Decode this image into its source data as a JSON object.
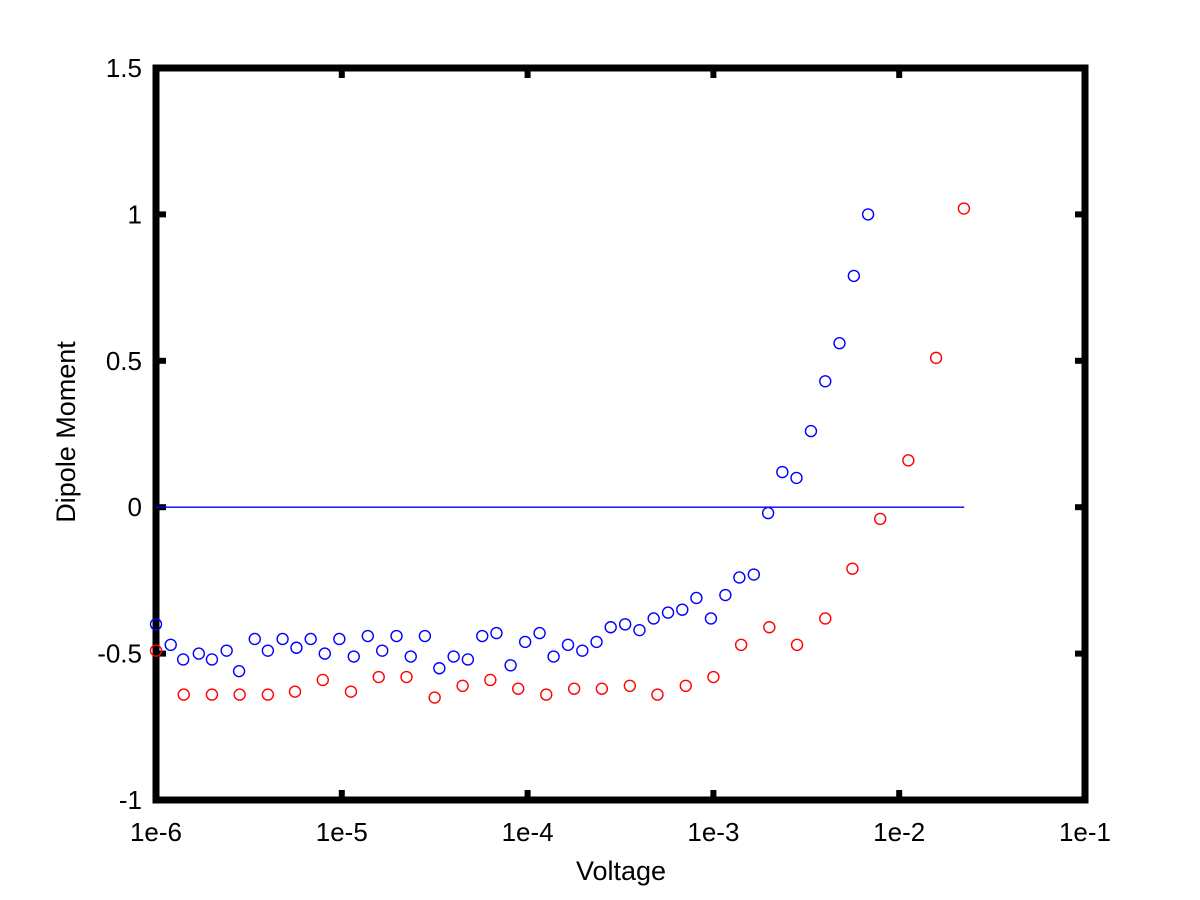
{
  "chart_data": {
    "type": "scatter",
    "title": "",
    "xlabel": "Voltage",
    "ylabel": "Dipole Moment",
    "x_scale": "log",
    "xlim": [
      1e-06,
      0.1
    ],
    "ylim": [
      -1,
      1.5
    ],
    "x_ticks": [
      {
        "value": 1e-06,
        "label": "1e-6"
      },
      {
        "value": 1e-05,
        "label": "1e-5"
      },
      {
        "value": 0.0001,
        "label": "1e-4"
      },
      {
        "value": 0.001,
        "label": "1e-3"
      },
      {
        "value": 0.01,
        "label": "1e-2"
      },
      {
        "value": 0.1,
        "label": "1e-1"
      }
    ],
    "y_ticks": [
      {
        "value": 1.5,
        "label": "1.5"
      },
      {
        "value": 1,
        "label": "1"
      },
      {
        "value": 0.5,
        "label": "0.5"
      },
      {
        "value": 0,
        "label": "0"
      },
      {
        "value": -0.5,
        "label": "-0.5"
      },
      {
        "value": -1,
        "label": "-1"
      }
    ],
    "grid": false,
    "reference_line": {
      "y": 0,
      "x_from": 1e-06,
      "x_to": 0.0224,
      "color": "#0000ff"
    },
    "series": [
      {
        "marker": "circle-open",
        "color": "#0000ff",
        "points": [
          [
            1e-06,
            -0.4
          ],
          [
            1.2e-06,
            -0.47
          ],
          [
            1.4e-06,
            -0.52
          ],
          [
            1.7e-06,
            -0.5
          ],
          [
            2e-06,
            -0.52
          ],
          [
            2.4e-06,
            -0.49
          ],
          [
            2.8e-06,
            -0.56
          ],
          [
            3.4e-06,
            -0.45
          ],
          [
            4e-06,
            -0.49
          ],
          [
            4.8e-06,
            -0.45
          ],
          [
            5.7e-06,
            -0.48
          ],
          [
            6.8e-06,
            -0.45
          ],
          [
            8.1e-06,
            -0.5
          ],
          [
            9.7e-06,
            -0.45
          ],
          [
            1.16e-05,
            -0.51
          ],
          [
            1.38e-05,
            -0.44
          ],
          [
            1.65e-05,
            -0.49
          ],
          [
            1.97e-05,
            -0.44
          ],
          [
            2.35e-05,
            -0.51
          ],
          [
            2.8e-05,
            -0.44
          ],
          [
            3.35e-05,
            -0.55
          ],
          [
            4e-05,
            -0.51
          ],
          [
            4.77e-05,
            -0.52
          ],
          [
            5.7e-05,
            -0.44
          ],
          [
            6.8e-05,
            -0.43
          ],
          [
            8.1e-05,
            -0.54
          ],
          [
            9.7e-05,
            -0.46
          ],
          [
            0.000116,
            -0.43
          ],
          [
            0.000138,
            -0.51
          ],
          [
            0.000165,
            -0.47
          ],
          [
            0.000197,
            -0.49
          ],
          [
            0.000235,
            -0.46
          ],
          [
            0.00028,
            -0.41
          ],
          [
            0.000335,
            -0.4
          ],
          [
            0.0004,
            -0.42
          ],
          [
            0.000477,
            -0.38
          ],
          [
            0.00057,
            -0.36
          ],
          [
            0.00068,
            -0.35
          ],
          [
            0.00081,
            -0.31
          ],
          [
            0.00097,
            -0.38
          ],
          [
            0.00116,
            -0.3
          ],
          [
            0.00138,
            -0.24
          ],
          [
            0.00165,
            -0.23
          ],
          [
            0.00197,
            -0.02
          ],
          [
            0.00235,
            0.12
          ],
          [
            0.0028,
            0.1
          ],
          [
            0.00335,
            0.26
          ],
          [
            0.004,
            0.43
          ],
          [
            0.00477,
            0.56
          ],
          [
            0.0057,
            0.79
          ],
          [
            0.0068,
            1.0
          ]
        ]
      },
      {
        "marker": "circle-open",
        "color": "#ff0000",
        "points": [
          [
            1e-06,
            -0.49
          ],
          [
            1.41e-06,
            -0.64
          ],
          [
            2e-06,
            -0.64
          ],
          [
            2.82e-06,
            -0.64
          ],
          [
            4e-06,
            -0.64
          ],
          [
            5.6e-06,
            -0.63
          ],
          [
            7.9e-06,
            -0.59
          ],
          [
            1.12e-05,
            -0.63
          ],
          [
            1.58e-05,
            -0.58
          ],
          [
            2.23e-05,
            -0.58
          ],
          [
            3.16e-05,
            -0.65
          ],
          [
            4.47e-05,
            -0.61
          ],
          [
            6.3e-05,
            -0.59
          ],
          [
            8.9e-05,
            -0.62
          ],
          [
            0.000126,
            -0.64
          ],
          [
            0.000178,
            -0.62
          ],
          [
            0.000251,
            -0.62
          ],
          [
            0.000355,
            -0.61
          ],
          [
            0.0005,
            -0.64
          ],
          [
            0.00071,
            -0.61
          ],
          [
            0.001,
            -0.58
          ],
          [
            0.00141,
            -0.47
          ],
          [
            0.002,
            -0.41
          ],
          [
            0.00282,
            -0.47
          ],
          [
            0.004,
            -0.38
          ],
          [
            0.0056,
            -0.21
          ],
          [
            0.0079,
            -0.04
          ],
          [
            0.0112,
            0.16
          ],
          [
            0.0158,
            0.51
          ],
          [
            0.0223,
            1.02
          ]
        ]
      }
    ]
  }
}
